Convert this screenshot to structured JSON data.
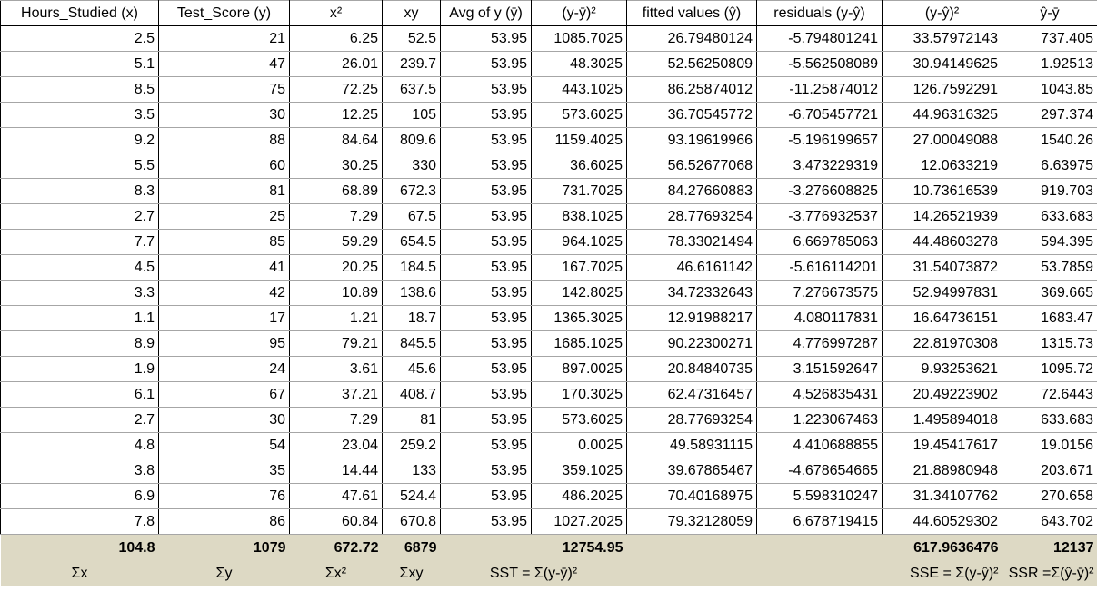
{
  "headers": [
    "Hours_Studied (x)",
    "Test_Score (y)",
    "x²",
    "xy",
    "Avg of y (ȳ)",
    "(y-ȳ)²",
    "fitted values (ŷ)",
    "residuals (y-ŷ)",
    "(y-ŷ)²",
    "ŷ-ȳ"
  ],
  "rows": [
    [
      "2.5",
      "21",
      "6.25",
      "52.5",
      "53.95",
      "1085.7025",
      "26.79480124",
      "-5.794801241",
      "33.57972143",
      "737.405"
    ],
    [
      "5.1",
      "47",
      "26.01",
      "239.7",
      "53.95",
      "48.3025",
      "52.56250809",
      "-5.562508089",
      "30.94149625",
      "1.92513"
    ],
    [
      "8.5",
      "75",
      "72.25",
      "637.5",
      "53.95",
      "443.1025",
      "86.25874012",
      "-11.25874012",
      "126.7592291",
      "1043.85"
    ],
    [
      "3.5",
      "30",
      "12.25",
      "105",
      "53.95",
      "573.6025",
      "36.70545772",
      "-6.705457721",
      "44.96316325",
      "297.374"
    ],
    [
      "9.2",
      "88",
      "84.64",
      "809.6",
      "53.95",
      "1159.4025",
      "93.19619966",
      "-5.196199657",
      "27.00049088",
      "1540.26"
    ],
    [
      "5.5",
      "60",
      "30.25",
      "330",
      "53.95",
      "36.6025",
      "56.52677068",
      "3.473229319",
      "12.0633219",
      "6.63975"
    ],
    [
      "8.3",
      "81",
      "68.89",
      "672.3",
      "53.95",
      "731.7025",
      "84.27660883",
      "-3.276608825",
      "10.73616539",
      "919.703"
    ],
    [
      "2.7",
      "25",
      "7.29",
      "67.5",
      "53.95",
      "838.1025",
      "28.77693254",
      "-3.776932537",
      "14.26521939",
      "633.683"
    ],
    [
      "7.7",
      "85",
      "59.29",
      "654.5",
      "53.95",
      "964.1025",
      "78.33021494",
      "6.669785063",
      "44.48603278",
      "594.395"
    ],
    [
      "4.5",
      "41",
      "20.25",
      "184.5",
      "53.95",
      "167.7025",
      "46.6161142",
      "-5.616114201",
      "31.54073872",
      "53.7859"
    ],
    [
      "3.3",
      "42",
      "10.89",
      "138.6",
      "53.95",
      "142.8025",
      "34.72332643",
      "7.276673575",
      "52.94997831",
      "369.665"
    ],
    [
      "1.1",
      "17",
      "1.21",
      "18.7",
      "53.95",
      "1365.3025",
      "12.91988217",
      "4.080117831",
      "16.64736151",
      "1683.47"
    ],
    [
      "8.9",
      "95",
      "79.21",
      "845.5",
      "53.95",
      "1685.1025",
      "90.22300271",
      "4.776997287",
      "22.81970308",
      "1315.73"
    ],
    [
      "1.9",
      "24",
      "3.61",
      "45.6",
      "53.95",
      "897.0025",
      "20.84840735",
      "3.151592647",
      "9.93253621",
      "1095.72"
    ],
    [
      "6.1",
      "67",
      "37.21",
      "408.7",
      "53.95",
      "170.3025",
      "62.47316457",
      "4.526835431",
      "20.49223902",
      "72.6443"
    ],
    [
      "2.7",
      "30",
      "7.29",
      "81",
      "53.95",
      "573.6025",
      "28.77693254",
      "1.223067463",
      "1.495894018",
      "633.683"
    ],
    [
      "4.8",
      "54",
      "23.04",
      "259.2",
      "53.95",
      "0.0025",
      "49.58931115",
      "4.410688855",
      "19.45417617",
      "19.0156"
    ],
    [
      "3.8",
      "35",
      "14.44",
      "133",
      "53.95",
      "359.1025",
      "39.67865467",
      "-4.678654665",
      "21.88980948",
      "203.671"
    ],
    [
      "6.9",
      "76",
      "47.61",
      "524.4",
      "53.95",
      "486.2025",
      "70.40168975",
      "5.598310247",
      "31.34107762",
      "270.658"
    ],
    [
      "7.8",
      "86",
      "60.84",
      "670.8",
      "53.95",
      "1027.2025",
      "79.32128059",
      "6.678719415",
      "44.60529302",
      "643.702"
    ]
  ],
  "totals": {
    "sum_x": "104.8",
    "sum_y": "1079",
    "sum_x2": "672.72",
    "sum_xy": "6879",
    "sst": "12754.95",
    "sse": "617.9636476",
    "ssr": "12137"
  },
  "labels": {
    "sum_x": "Σx",
    "sum_y": "Σy",
    "sum_x2": "Σx²",
    "sum_xy": "Σxy",
    "sst": "SST = Σ(y-ȳ)²",
    "sse": "SSE = Σ(y-ŷ)²",
    "ssr": "SSR =Σ(ŷ-ȳ)²"
  },
  "colors": {
    "totals_background": "#ddd9c4",
    "formula_text": "#00a000"
  }
}
